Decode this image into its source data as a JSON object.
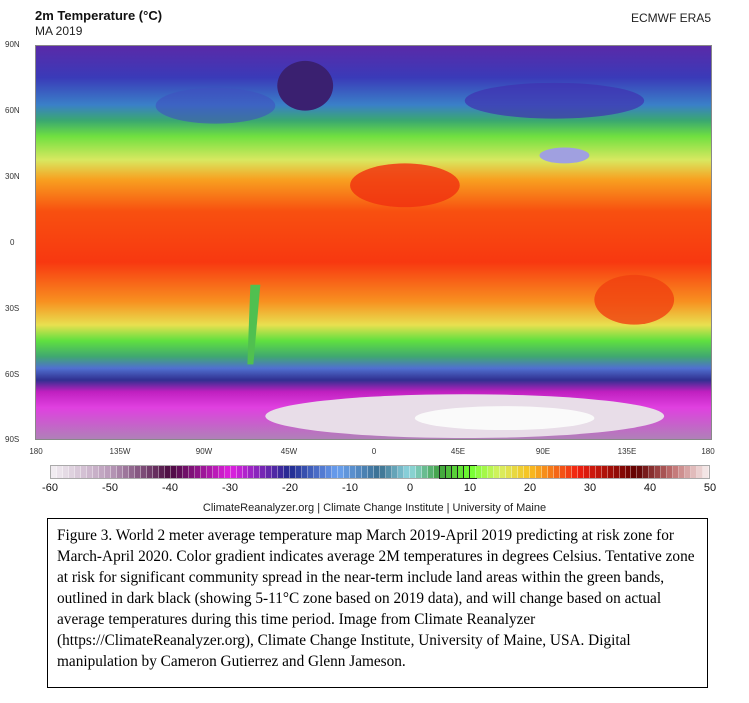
{
  "header": {
    "title": "2m Temperature (°C)",
    "subtitle": "MA 2019",
    "source": "ECMWF ERA5"
  },
  "map": {
    "lat_labels": [
      "90N",
      "60N",
      "30N",
      "0",
      "30S",
      "60S",
      "90S"
    ],
    "lon_labels": [
      "180",
      "135W",
      "90W",
      "45W",
      "0",
      "45E",
      "90E",
      "135E",
      "180"
    ]
  },
  "colorbar": {
    "min": -60,
    "max": 50,
    "step": 1,
    "tick_labels": [
      "-60",
      "-50",
      "-40",
      "-30",
      "-20",
      "-10",
      "0",
      "10",
      "20",
      "30",
      "40",
      "50"
    ],
    "highlight_range": [
      5,
      11
    ],
    "stops": [
      [
        -60,
        "#f4f0f4"
      ],
      [
        -50,
        "#b99ab9"
      ],
      [
        -40,
        "#4a0a40"
      ],
      [
        -30,
        "#e020e0"
      ],
      [
        -20,
        "#202a90"
      ],
      [
        -12,
        "#6aa0f0"
      ],
      [
        -5,
        "#3a7090"
      ],
      [
        0,
        "#90d8e0"
      ],
      [
        5,
        "#40a040"
      ],
      [
        10,
        "#70ff30"
      ],
      [
        15,
        "#d8f060"
      ],
      [
        20,
        "#f8c020"
      ],
      [
        28,
        "#f02010"
      ],
      [
        38,
        "#600000"
      ],
      [
        44,
        "#c07070"
      ],
      [
        50,
        "#f8f0f0"
      ]
    ]
  },
  "credit": "ClimateReanalyzer.org | Climate Change Institute | University of Maine",
  "caption": "Figure 3. World 2 meter average temperature map March 2019-April 2019 predicting at risk zone for March-April 2020. Color gradient indicates average 2M temperatures in degrees Celsius. Tentative zone at risk for significant community spread in the near-term include land areas within the green bands, outlined in dark black (showing 5-11°C zone based on 2019 data), and will change based on actual average temperatures during this time period. Image from Climate Reanalyzer (https://ClimateReanalyzer.org), Climate Change Institute, University of Maine, USA. Digital manipulation by Cameron Gutierrez and Glenn Jameson."
}
